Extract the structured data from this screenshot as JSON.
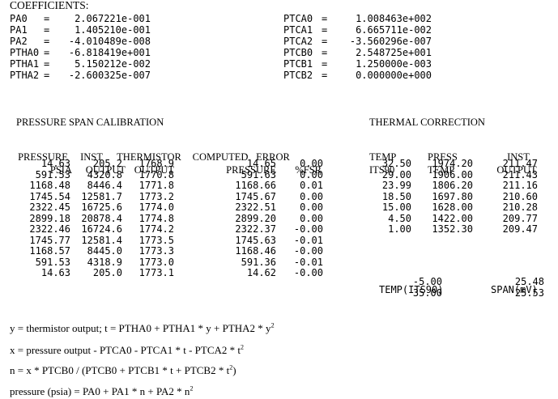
{
  "coefficients_title": "COEFFICIENTS:",
  "coef_left": [
    {
      "name": "PA0",
      "value": "2.067221e-001"
    },
    {
      "name": "PA1",
      "value": "1.405210e-001"
    },
    {
      "name": "PA2",
      "value": "-4.010489e-008"
    },
    {
      "name": "PTHA0",
      "value": "-6.818419e+001"
    },
    {
      "name": "PTHA1",
      "value": "5.150212e-002"
    },
    {
      "name": "PTHA2",
      "value": "-2.600325e-007"
    }
  ],
  "coef_right": [
    {
      "name": "PTCA0",
      "value": "1.008463e+002"
    },
    {
      "name": "PTCA1",
      "value": "6.665711e-002"
    },
    {
      "name": "PTCA2",
      "value": "-3.560296e-007"
    },
    {
      "name": "PTCB0",
      "value": "2.548725e+001"
    },
    {
      "name": "PTCB1",
      "value": "1.250000e-003"
    },
    {
      "name": "PTCB2",
      "value": "0.000000e+000"
    }
  ],
  "calibration": {
    "title": "PRESSURE SPAN CALIBRATION",
    "header1": [
      "PRESSURE",
      "INST",
      "THERMISTOR",
      "COMPUTED",
      "ERROR"
    ],
    "header2": [
      "PSIA",
      "OUTPUT",
      "OUTPUT",
      "PRESSURE",
      "%FSR"
    ],
    "rows": [
      [
        "14.63",
        "205.2",
        "1768.9",
        "14.65",
        "0.00"
      ],
      [
        "591.53",
        "4320.8",
        "1770.8",
        "591.63",
        "0.00"
      ],
      [
        "1168.48",
        "8446.4",
        "1771.8",
        "1168.66",
        "0.01"
      ],
      [
        "1745.54",
        "12581.7",
        "1773.2",
        "1745.67",
        "0.00"
      ],
      [
        "2322.45",
        "16725.6",
        "1774.0",
        "2322.51",
        "0.00"
      ],
      [
        "2899.18",
        "20878.4",
        "1774.8",
        "2899.20",
        "0.00"
      ],
      [
        "2322.46",
        "16724.6",
        "1774.2",
        "2322.37",
        "-0.00"
      ],
      [
        "1745.77",
        "12581.4",
        "1773.5",
        "1745.63",
        "-0.01"
      ],
      [
        "1168.57",
        "8445.0",
        "1773.3",
        "1168.46",
        "-0.00"
      ],
      [
        "591.53",
        "4318.9",
        "1773.0",
        "591.36",
        "-0.01"
      ],
      [
        "14.63",
        "205.0",
        "1773.1",
        "14.62",
        "-0.00"
      ]
    ]
  },
  "thermal": {
    "title": "THERMAL CORRECTION",
    "header1": [
      "TEMP",
      "PRESS",
      "INST"
    ],
    "header2": [
      "ITS90",
      "TEMP",
      "OUTPUT"
    ],
    "rows": [
      [
        "32.50",
        "1974.20",
        "211.47"
      ],
      [
        "29.00",
        "1906.00",
        "211.43"
      ],
      [
        "23.99",
        "1806.20",
        "211.16"
      ],
      [
        "18.50",
        "1697.80",
        "210.60"
      ],
      [
        "15.00",
        "1628.00",
        "210.28"
      ],
      [
        "4.50",
        "1422.00",
        "209.77"
      ],
      [
        "1.00",
        "1352.30",
        "209.47"
      ]
    ],
    "span_header": [
      "TEMP(ITS90)",
      "SPAN(mV)"
    ],
    "span_rows": [
      [
        "-5.00",
        "25.48"
      ],
      [
        "35.00",
        "25.53"
      ]
    ]
  },
  "equations": {
    "eq1": "y = thermistor output; t = PTHA0 + PTHA1 * y + PTHA2 * y",
    "eq1_sup": "2",
    "eq2": "x = pressure output - PTCA0 - PTCA1 * t - PTCA2 * t",
    "eq2_sup": "2",
    "eq3a": "n = x * PTCB0 / (PTCB0 + PTCB1 * t + PTCB2 * t",
    "eq3_sup": "2",
    "eq3b": ")",
    "eq4": "pressure (psia) = PA0 + PA1 * n + PA2 * n",
    "eq4_sup": "2"
  }
}
